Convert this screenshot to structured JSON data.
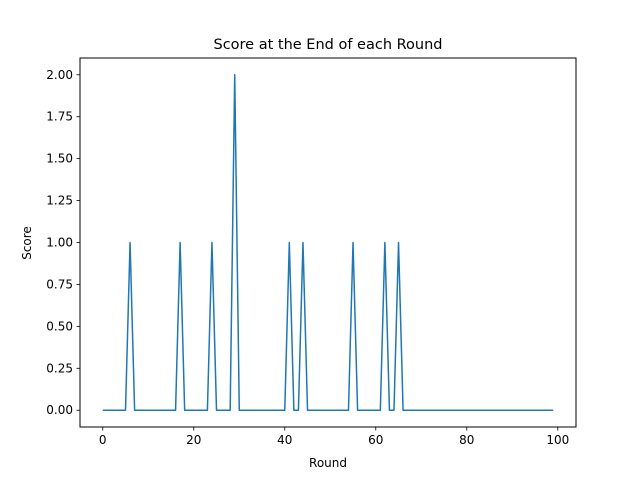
{
  "chart_data": {
    "type": "line",
    "title": "Score at the End of each Round",
    "xlabel": "Round",
    "ylabel": "Score",
    "xlim": [
      -5,
      104
    ],
    "ylim": [
      -0.1,
      2.1
    ],
    "xticks": [
      0,
      20,
      40,
      60,
      80,
      100
    ],
    "xtick_labels": [
      "0",
      "20",
      "40",
      "60",
      "80",
      "100"
    ],
    "yticks": [
      0,
      0.25,
      0.5,
      0.75,
      1.0,
      1.25,
      1.5,
      1.75,
      2.0
    ],
    "ytick_labels": [
      "0.00",
      "0.25",
      "0.50",
      "0.75",
      "1.00",
      "1.25",
      "1.50",
      "1.75",
      "2.00"
    ],
    "grid": false,
    "series": [
      {
        "color": "#1f77b4",
        "x_start": 0,
        "x_step": 1,
        "values": [
          0,
          0,
          0,
          0,
          0,
          0,
          1,
          0,
          0,
          0,
          0,
          0,
          0,
          0,
          0,
          0,
          0,
          1,
          0,
          0,
          0,
          0,
          0,
          0,
          1,
          0,
          0,
          0,
          0,
          2,
          0,
          0,
          0,
          0,
          0,
          0,
          0,
          0,
          0,
          0,
          0,
          1,
          0,
          0,
          1,
          0,
          0,
          0,
          0,
          0,
          0,
          0,
          0,
          0,
          0,
          1,
          0,
          0,
          0,
          0,
          0,
          0,
          1,
          0,
          0,
          1,
          0,
          0,
          0,
          0,
          0,
          0,
          0,
          0,
          0,
          0,
          0,
          0,
          0,
          0,
          0,
          0,
          0,
          0,
          0,
          0,
          0,
          0,
          0,
          0,
          0,
          0,
          0,
          0,
          0,
          0,
          0,
          0,
          0,
          0
        ]
      }
    ]
  }
}
